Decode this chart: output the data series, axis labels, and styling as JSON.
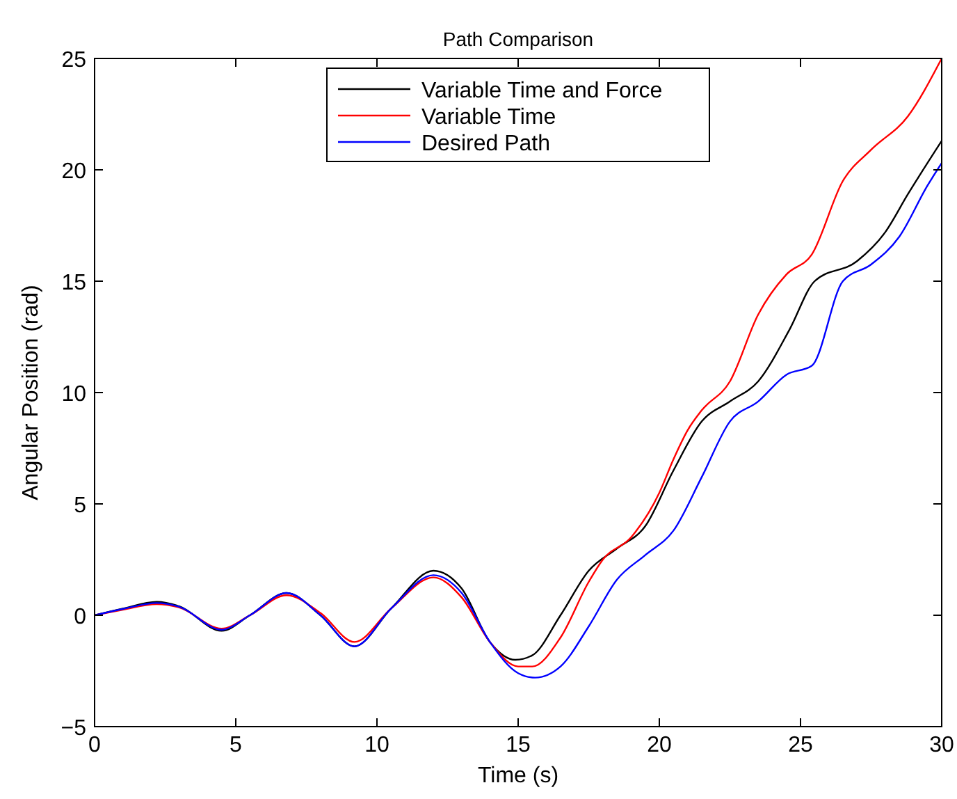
{
  "chart_data": {
    "type": "line",
    "title": "Path Comparison",
    "xlabel": "Time (s)",
    "ylabel": "Angular Position (rad)",
    "xlim": [
      0,
      30
    ],
    "ylim": [
      -5,
      25
    ],
    "xticks": [
      0,
      5,
      10,
      15,
      20,
      25,
      30
    ],
    "yticks": [
      -5,
      0,
      5,
      10,
      15,
      20,
      25
    ],
    "grid": false,
    "legend": "top",
    "series": [
      {
        "name": "Variable Time and Force",
        "color": "#000000",
        "x": [
          0,
          1,
          2.2,
          3,
          4.5,
          5.5,
          6.8,
          8,
          9.2,
          10.5,
          12,
          13,
          14,
          14.9,
          15.5,
          16.5,
          17.5,
          18.5,
          19.5,
          20.5,
          21.5,
          22.5,
          23.5,
          24.6,
          25.5,
          27,
          28,
          28.8,
          30
        ],
        "values": [
          0,
          0.3,
          0.6,
          0.4,
          -0.7,
          0,
          1,
          0,
          -1.4,
          0.3,
          2,
          1.2,
          -1.2,
          -2,
          -1.8,
          0,
          2,
          3,
          4,
          6.5,
          8.7,
          9.6,
          10.5,
          12.8,
          15,
          15.9,
          17.2,
          18.9,
          21.3
        ]
      },
      {
        "name": "Variable Time",
        "color": "#ff0000",
        "x": [
          0,
          1,
          2.2,
          3,
          4.5,
          5.5,
          6.8,
          8,
          9.2,
          10.5,
          12,
          13,
          14,
          15,
          15.5,
          16.5,
          17.5,
          18,
          19,
          20,
          20.5,
          21,
          21.5,
          22.5,
          23.5,
          24.5,
          25.4,
          26.5,
          27.5,
          28.8,
          30
        ],
        "values": [
          0,
          0.25,
          0.5,
          0.35,
          -0.6,
          0,
          0.9,
          0.1,
          -1.2,
          0.3,
          1.7,
          0.8,
          -1.2,
          -2.3,
          -2.3,
          -1,
          1.5,
          2.5,
          3.5,
          5.5,
          7,
          8.3,
          9.2,
          10.5,
          13.5,
          15.3,
          16.2,
          19.5,
          20.9,
          22.4,
          25
        ]
      },
      {
        "name": "Desired Path",
        "color": "#0000ff",
        "x": [
          0,
          1,
          2.2,
          3,
          4.5,
          5.5,
          6.8,
          8,
          9.2,
          10.5,
          12,
          13,
          14,
          15,
          15.6,
          16.5,
          17.5,
          18.5,
          19.5,
          20.5,
          21.5,
          22.5,
          23.5,
          24.5,
          25.4,
          26.5,
          27.5,
          28.5,
          29.5,
          30
        ],
        "values": [
          0,
          0.28,
          0.55,
          0.38,
          -0.65,
          0,
          1,
          0,
          -1.4,
          0.3,
          1.8,
          1,
          -1.2,
          -2.6,
          -2.8,
          -2.3,
          -0.5,
          1.6,
          2.7,
          3.8,
          6.2,
          8.7,
          9.6,
          10.8,
          11.2,
          15,
          15.75,
          17,
          19.3,
          20.3
        ]
      }
    ]
  }
}
